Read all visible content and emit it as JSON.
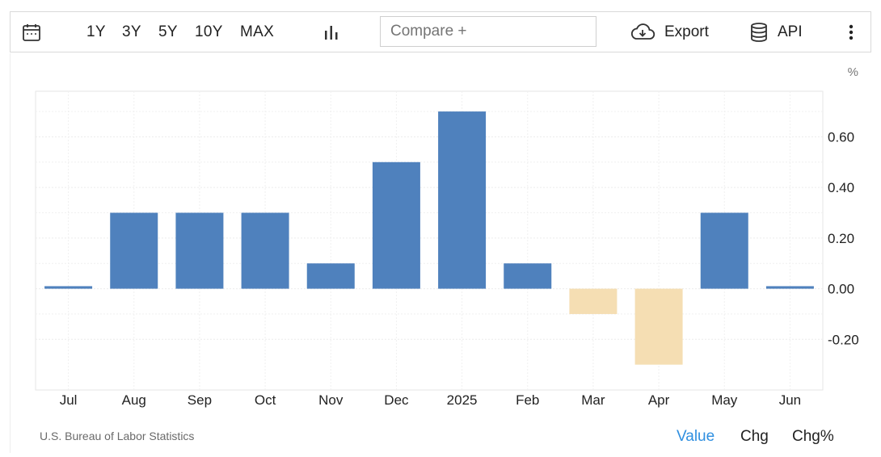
{
  "toolbar": {
    "range_buttons": [
      "1Y",
      "3Y",
      "5Y",
      "10Y",
      "MAX"
    ],
    "compare_placeholder": "Compare +",
    "export_label": "Export",
    "api_label": "API"
  },
  "icons": {
    "calendar": "calendar-icon",
    "chart_type": "bar-chart-icon",
    "export": "cloud-download-icon",
    "api": "database-icon",
    "more": "more-vertical-icon"
  },
  "colors": {
    "positive_bar": "#4f81bd",
    "negative_bar": "#f5deb3",
    "active_mode": "#2f8fe0"
  },
  "footer": {
    "source": "U.S. Bureau of Labor Statistics",
    "modes": [
      "Value",
      "Chg",
      "Chg%"
    ],
    "active_mode": "Value"
  },
  "chart_data": {
    "type": "bar",
    "unit_label": "%",
    "categories": [
      "Jul",
      "Aug",
      "Sep",
      "Oct",
      "Nov",
      "Dec",
      "2025",
      "Feb",
      "Mar",
      "Apr",
      "May",
      "Jun"
    ],
    "values": [
      0.01,
      0.3,
      0.3,
      0.3,
      0.1,
      0.5,
      0.7,
      0.1,
      -0.1,
      -0.3,
      0.3,
      0.01
    ],
    "ylim": [
      -0.4,
      0.78
    ],
    "yticks": [
      -0.2,
      0.0,
      0.2,
      0.4,
      0.6
    ],
    "ytick_labels": [
      "-0.20",
      "0.00",
      "0.20",
      "0.40",
      "0.60"
    ],
    "grid": true,
    "y_axis_position": "right"
  }
}
